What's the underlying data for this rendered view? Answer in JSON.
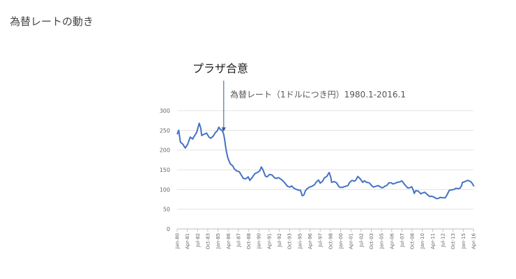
{
  "page": {
    "heading": "為替レートの動き"
  },
  "annotation": {
    "label": "プラザ合意",
    "date": "Sep-85"
  },
  "chart_data": {
    "type": "line",
    "title": "為替レート（1ドルにつき円）1980.1-2016.1",
    "xlabel": "",
    "ylabel": "",
    "ylim": [
      0,
      300
    ],
    "yticks": [
      0,
      50,
      100,
      150,
      200,
      250,
      300
    ],
    "grid": true,
    "legend": "none",
    "color": "#4472C4",
    "xticks": [
      "Jan-80",
      "Apr-81",
      "Jul-82",
      "Oct-83",
      "Jan-85",
      "Apr-86",
      "Jul-87",
      "Oct-88",
      "Jan-90",
      "Apr-91",
      "Jul-92",
      "Oct-93",
      "Jan-95",
      "Apr-96",
      "Jul-97",
      "Oct-98",
      "Jan-00",
      "Apr-01",
      "Jul-02",
      "Oct-03",
      "Jan-05",
      "Apr-06",
      "Jul-07",
      "Oct-08",
      "Jan-10",
      "Apr-11",
      "Jul-12",
      "Oct-13",
      "Jan-15",
      "Apr-16"
    ],
    "series": [
      {
        "values": [
          [
            1980.0,
            240
          ],
          [
            1980.2,
            250
          ],
          [
            1980.4,
            220
          ],
          [
            1980.7,
            215
          ],
          [
            1981.0,
            205
          ],
          [
            1981.3,
            215
          ],
          [
            1981.6,
            233
          ],
          [
            1981.9,
            228
          ],
          [
            1982.1,
            235
          ],
          [
            1982.4,
            245
          ],
          [
            1982.7,
            268
          ],
          [
            1982.9,
            255
          ],
          [
            1983.0,
            237
          ],
          [
            1983.3,
            240
          ],
          [
            1983.6,
            243
          ],
          [
            1983.9,
            233
          ],
          [
            1984.1,
            230
          ],
          [
            1984.4,
            235
          ],
          [
            1984.7,
            245
          ],
          [
            1984.9,
            248
          ],
          [
            1985.1,
            258
          ],
          [
            1985.3,
            252
          ],
          [
            1985.5,
            250
          ],
          [
            1985.7,
            240
          ],
          [
            1985.8,
            228
          ],
          [
            1986.0,
            200
          ],
          [
            1986.2,
            180
          ],
          [
            1986.5,
            165
          ],
          [
            1986.8,
            160
          ],
          [
            1987.0,
            152
          ],
          [
            1987.3,
            147
          ],
          [
            1987.6,
            145
          ],
          [
            1987.9,
            135
          ],
          [
            1988.1,
            128
          ],
          [
            1988.4,
            127
          ],
          [
            1988.7,
            132
          ],
          [
            1988.9,
            123
          ],
          [
            1989.2,
            131
          ],
          [
            1989.5,
            140
          ],
          [
            1989.8,
            143
          ],
          [
            1990.1,
            147
          ],
          [
            1990.3,
            157
          ],
          [
            1990.5,
            150
          ],
          [
            1990.8,
            134
          ],
          [
            1991.0,
            132
          ],
          [
            1991.3,
            138
          ],
          [
            1991.6,
            137
          ],
          [
            1991.9,
            130
          ],
          [
            1992.1,
            128
          ],
          [
            1992.4,
            130
          ],
          [
            1992.7,
            126
          ],
          [
            1992.9,
            123
          ],
          [
            1993.2,
            116
          ],
          [
            1993.5,
            108
          ],
          [
            1993.8,
            106
          ],
          [
            1994.0,
            109
          ],
          [
            1994.3,
            103
          ],
          [
            1994.6,
            100
          ],
          [
            1994.9,
            98
          ],
          [
            1995.1,
            98
          ],
          [
            1995.3,
            84
          ],
          [
            1995.5,
            86
          ],
          [
            1995.7,
            97
          ],
          [
            1995.9,
            102
          ],
          [
            1996.2,
            106
          ],
          [
            1996.5,
            108
          ],
          [
            1996.8,
            112
          ],
          [
            1997.0,
            118
          ],
          [
            1997.3,
            124
          ],
          [
            1997.5,
            116
          ],
          [
            1997.8,
            121
          ],
          [
            1998.0,
            129
          ],
          [
            1998.3,
            133
          ],
          [
            1998.5,
            140
          ],
          [
            1998.6,
            143
          ],
          [
            1998.8,
            131
          ],
          [
            1998.9,
            118
          ],
          [
            1999.2,
            120
          ],
          [
            1999.5,
            117
          ],
          [
            1999.8,
            107
          ],
          [
            2000.0,
            105
          ],
          [
            2000.3,
            106
          ],
          [
            2000.6,
            108
          ],
          [
            2000.9,
            110
          ],
          [
            2001.1,
            118
          ],
          [
            2001.4,
            123
          ],
          [
            2001.7,
            121
          ],
          [
            2001.9,
            125
          ],
          [
            2002.1,
            133
          ],
          [
            2002.4,
            127
          ],
          [
            2002.7,
            118
          ],
          [
            2002.9,
            122
          ],
          [
            2003.2,
            118
          ],
          [
            2003.5,
            117
          ],
          [
            2003.8,
            110
          ],
          [
            2004.0,
            106
          ],
          [
            2004.3,
            108
          ],
          [
            2004.6,
            110
          ],
          [
            2004.9,
            106
          ],
          [
            2005.1,
            104
          ],
          [
            2005.4,
            108
          ],
          [
            2005.7,
            111
          ],
          [
            2005.9,
            117
          ],
          [
            2006.2,
            117
          ],
          [
            2006.4,
            114
          ],
          [
            2006.7,
            116
          ],
          [
            2006.9,
            118
          ],
          [
            2007.2,
            119
          ],
          [
            2007.5,
            122
          ],
          [
            2007.7,
            116
          ],
          [
            2007.9,
            111
          ],
          [
            2008.2,
            104
          ],
          [
            2008.4,
            104
          ],
          [
            2008.7,
            107
          ],
          [
            2008.9,
            98
          ],
          [
            2009.0,
            90
          ],
          [
            2009.2,
            97
          ],
          [
            2009.5,
            96
          ],
          [
            2009.8,
            89
          ],
          [
            2010.0,
            91
          ],
          [
            2010.3,
            93
          ],
          [
            2010.6,
            87
          ],
          [
            2010.9,
            82
          ],
          [
            2011.1,
            83
          ],
          [
            2011.4,
            81
          ],
          [
            2011.7,
            77
          ],
          [
            2011.9,
            77
          ],
          [
            2012.2,
            80
          ],
          [
            2012.5,
            79
          ],
          [
            2012.8,
            79
          ],
          [
            2012.9,
            82
          ],
          [
            2013.1,
            90
          ],
          [
            2013.3,
            98
          ],
          [
            2013.6,
            99
          ],
          [
            2013.9,
            100
          ],
          [
            2014.1,
            103
          ],
          [
            2014.4,
            102
          ],
          [
            2014.6,
            103
          ],
          [
            2014.8,
            110
          ],
          [
            2014.9,
            118
          ],
          [
            2015.1,
            119
          ],
          [
            2015.4,
            122
          ],
          [
            2015.6,
            123
          ],
          [
            2015.9,
            120
          ],
          [
            2016.0,
            118
          ],
          [
            2016.2,
            112
          ],
          [
            2016.3,
            108
          ]
        ]
      }
    ]
  }
}
